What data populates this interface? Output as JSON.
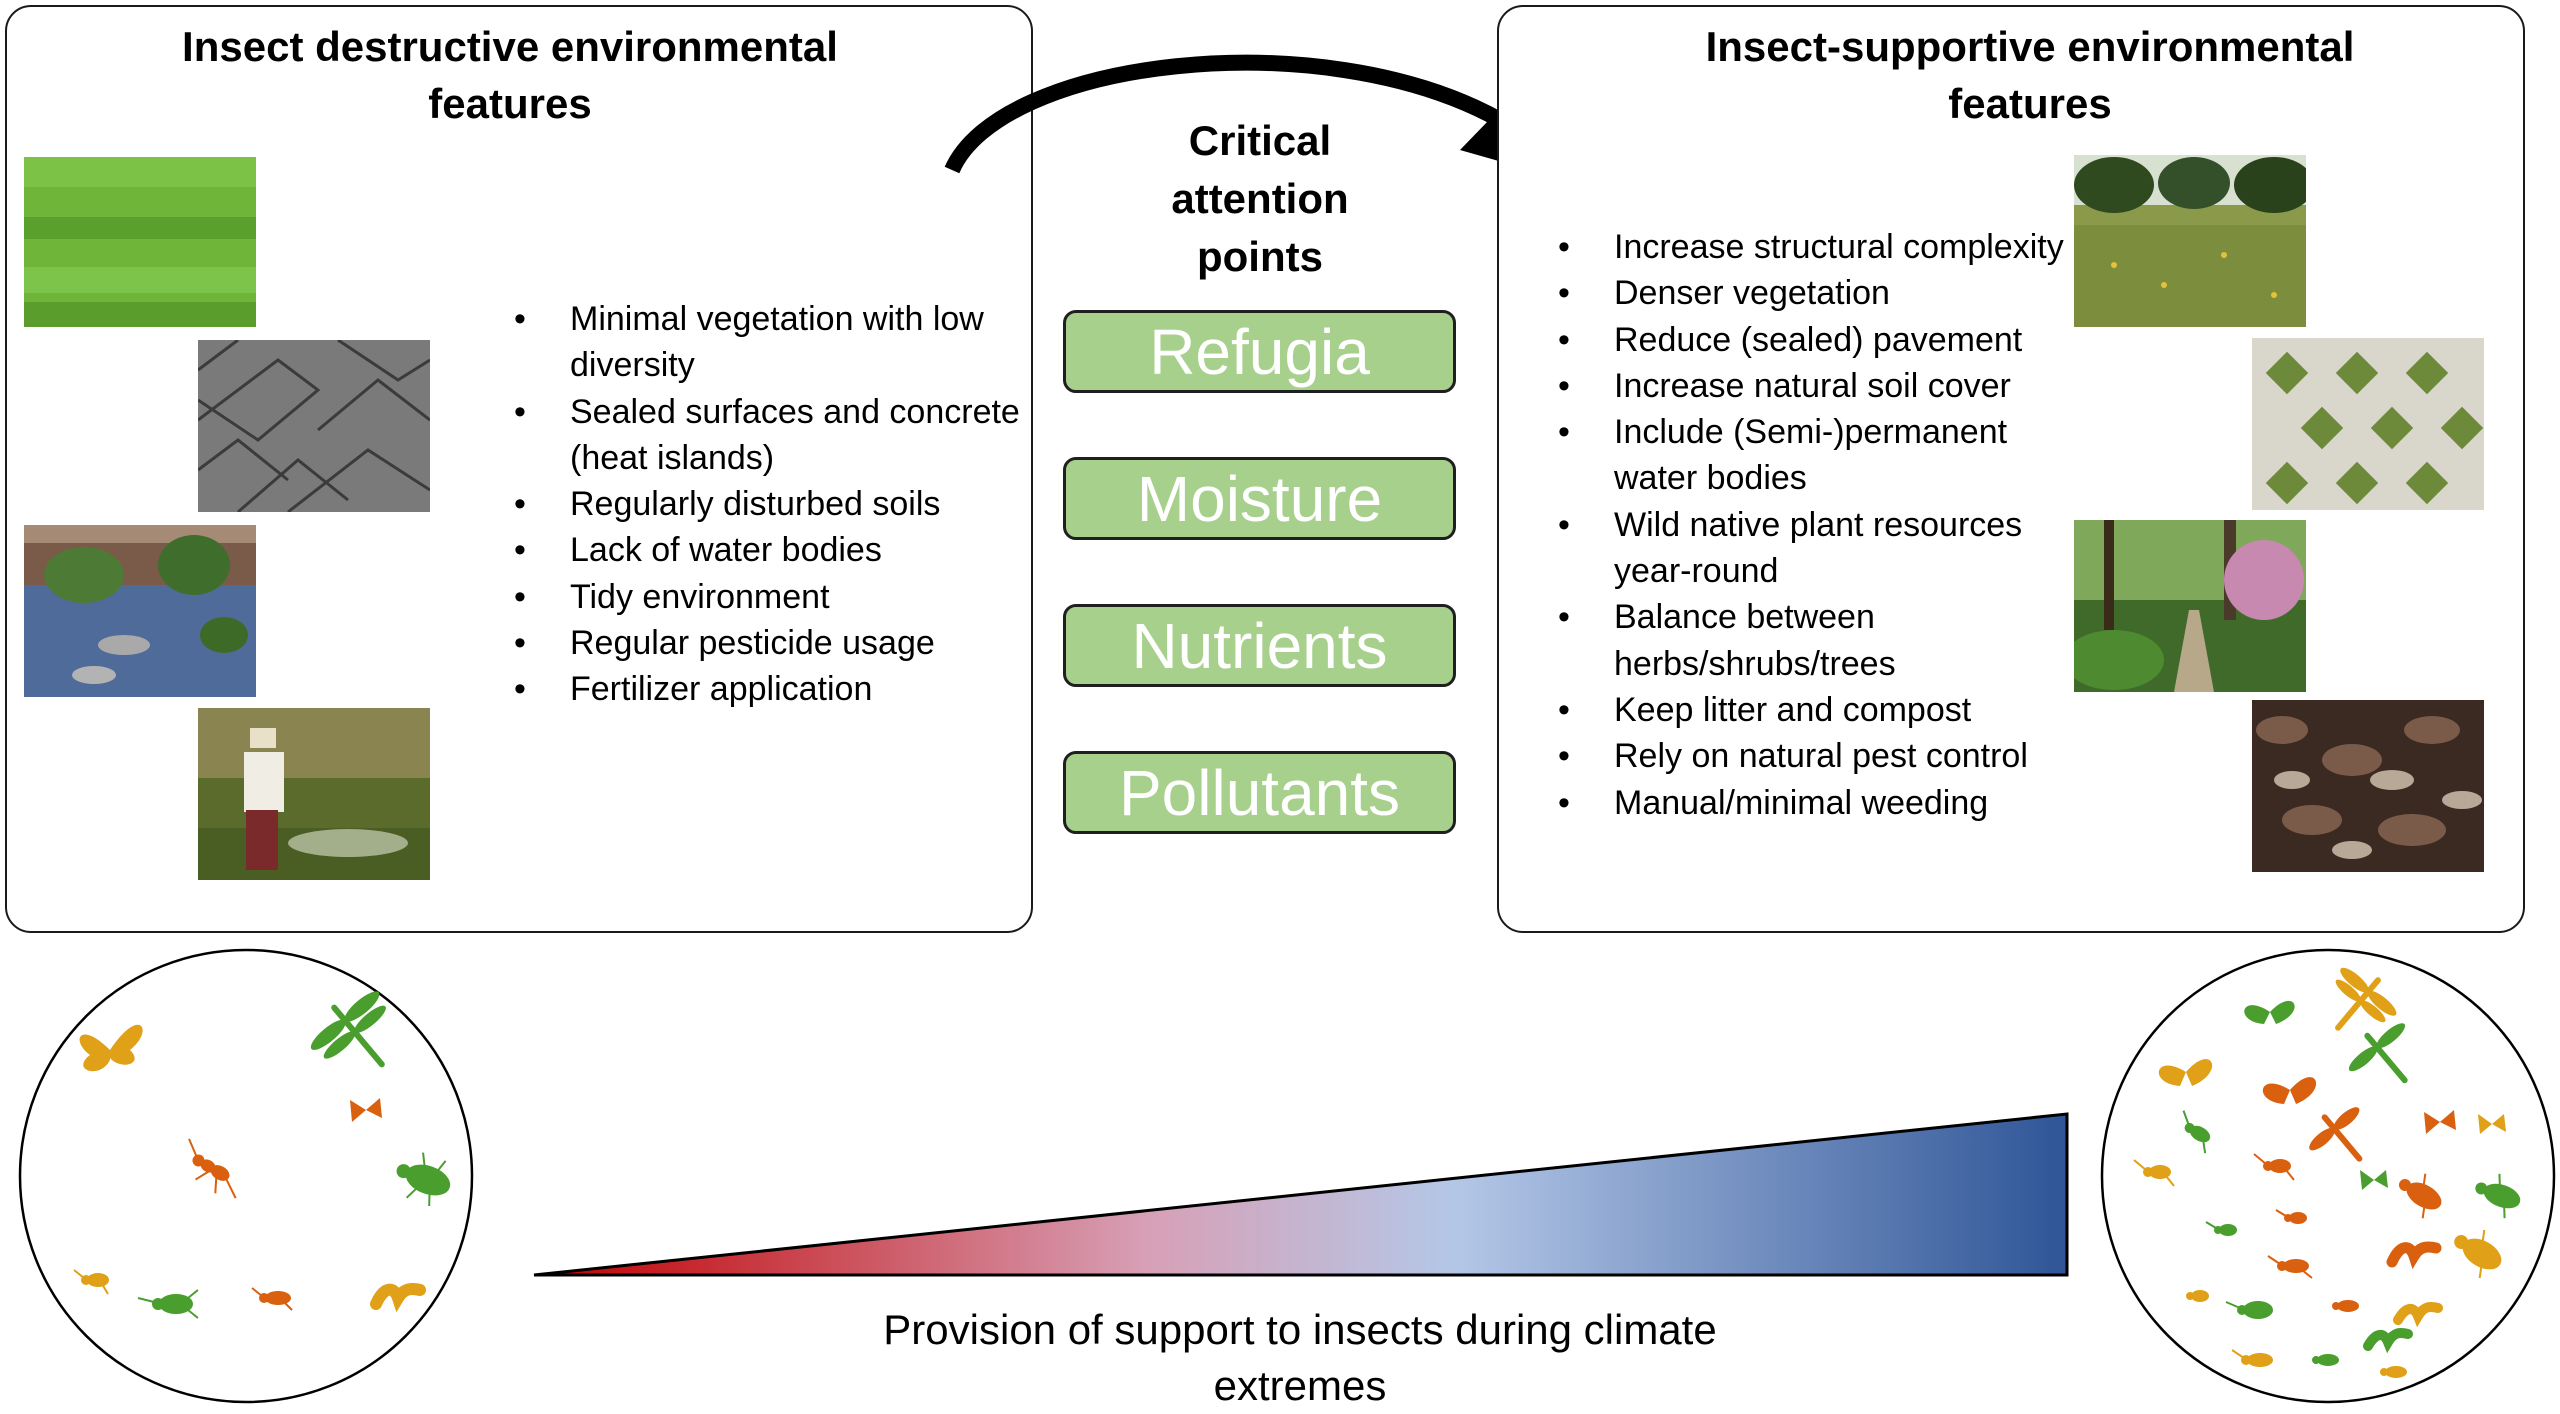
{
  "left_panel": {
    "title": "Insect destructive environmental features",
    "items": [
      "Minimal vegetation with low diversity",
      "Sealed surfaces and concrete (heat islands)",
      "Regularly disturbed soils",
      "Lack of water bodies",
      "Tidy environment",
      "Regular pesticide usage",
      "Fertilizer application"
    ]
  },
  "center": {
    "title": "Critical attention points",
    "points": [
      "Refugia",
      "Moisture",
      "Nutrients",
      "Pollutants"
    ]
  },
  "right_panel": {
    "title": "Insect-supportive environmental features",
    "items": [
      "Increase structural complexity",
      "Denser vegetation",
      "Reduce (sealed) pavement",
      "Increase natural soil cover",
      "Include (Semi-)permanent water bodies",
      "Wild native plant resources year-round",
      "Balance between herbs/shrubs/trees",
      "Keep litter and compost",
      "Rely on natural pest control",
      "Manual/minimal weeding"
    ]
  },
  "caption": "Provision of support to insects during climate extremes",
  "colors": {
    "pill_fill": "#a8d08d",
    "gradient_start": "#c00000",
    "gradient_mid": "#b4c7e7",
    "gradient_end": "#2f5597",
    "insect_orange": "#d9600f",
    "insect_yellow": "#e0a017",
    "insect_green": "#4a9e2e"
  },
  "icons": {
    "arrow": "curved-arrow-icon",
    "insects": [
      "butterfly-icon",
      "dragonfly-icon",
      "beetle-icon",
      "ant-icon",
      "caterpillar-icon",
      "moth-icon"
    ]
  }
}
